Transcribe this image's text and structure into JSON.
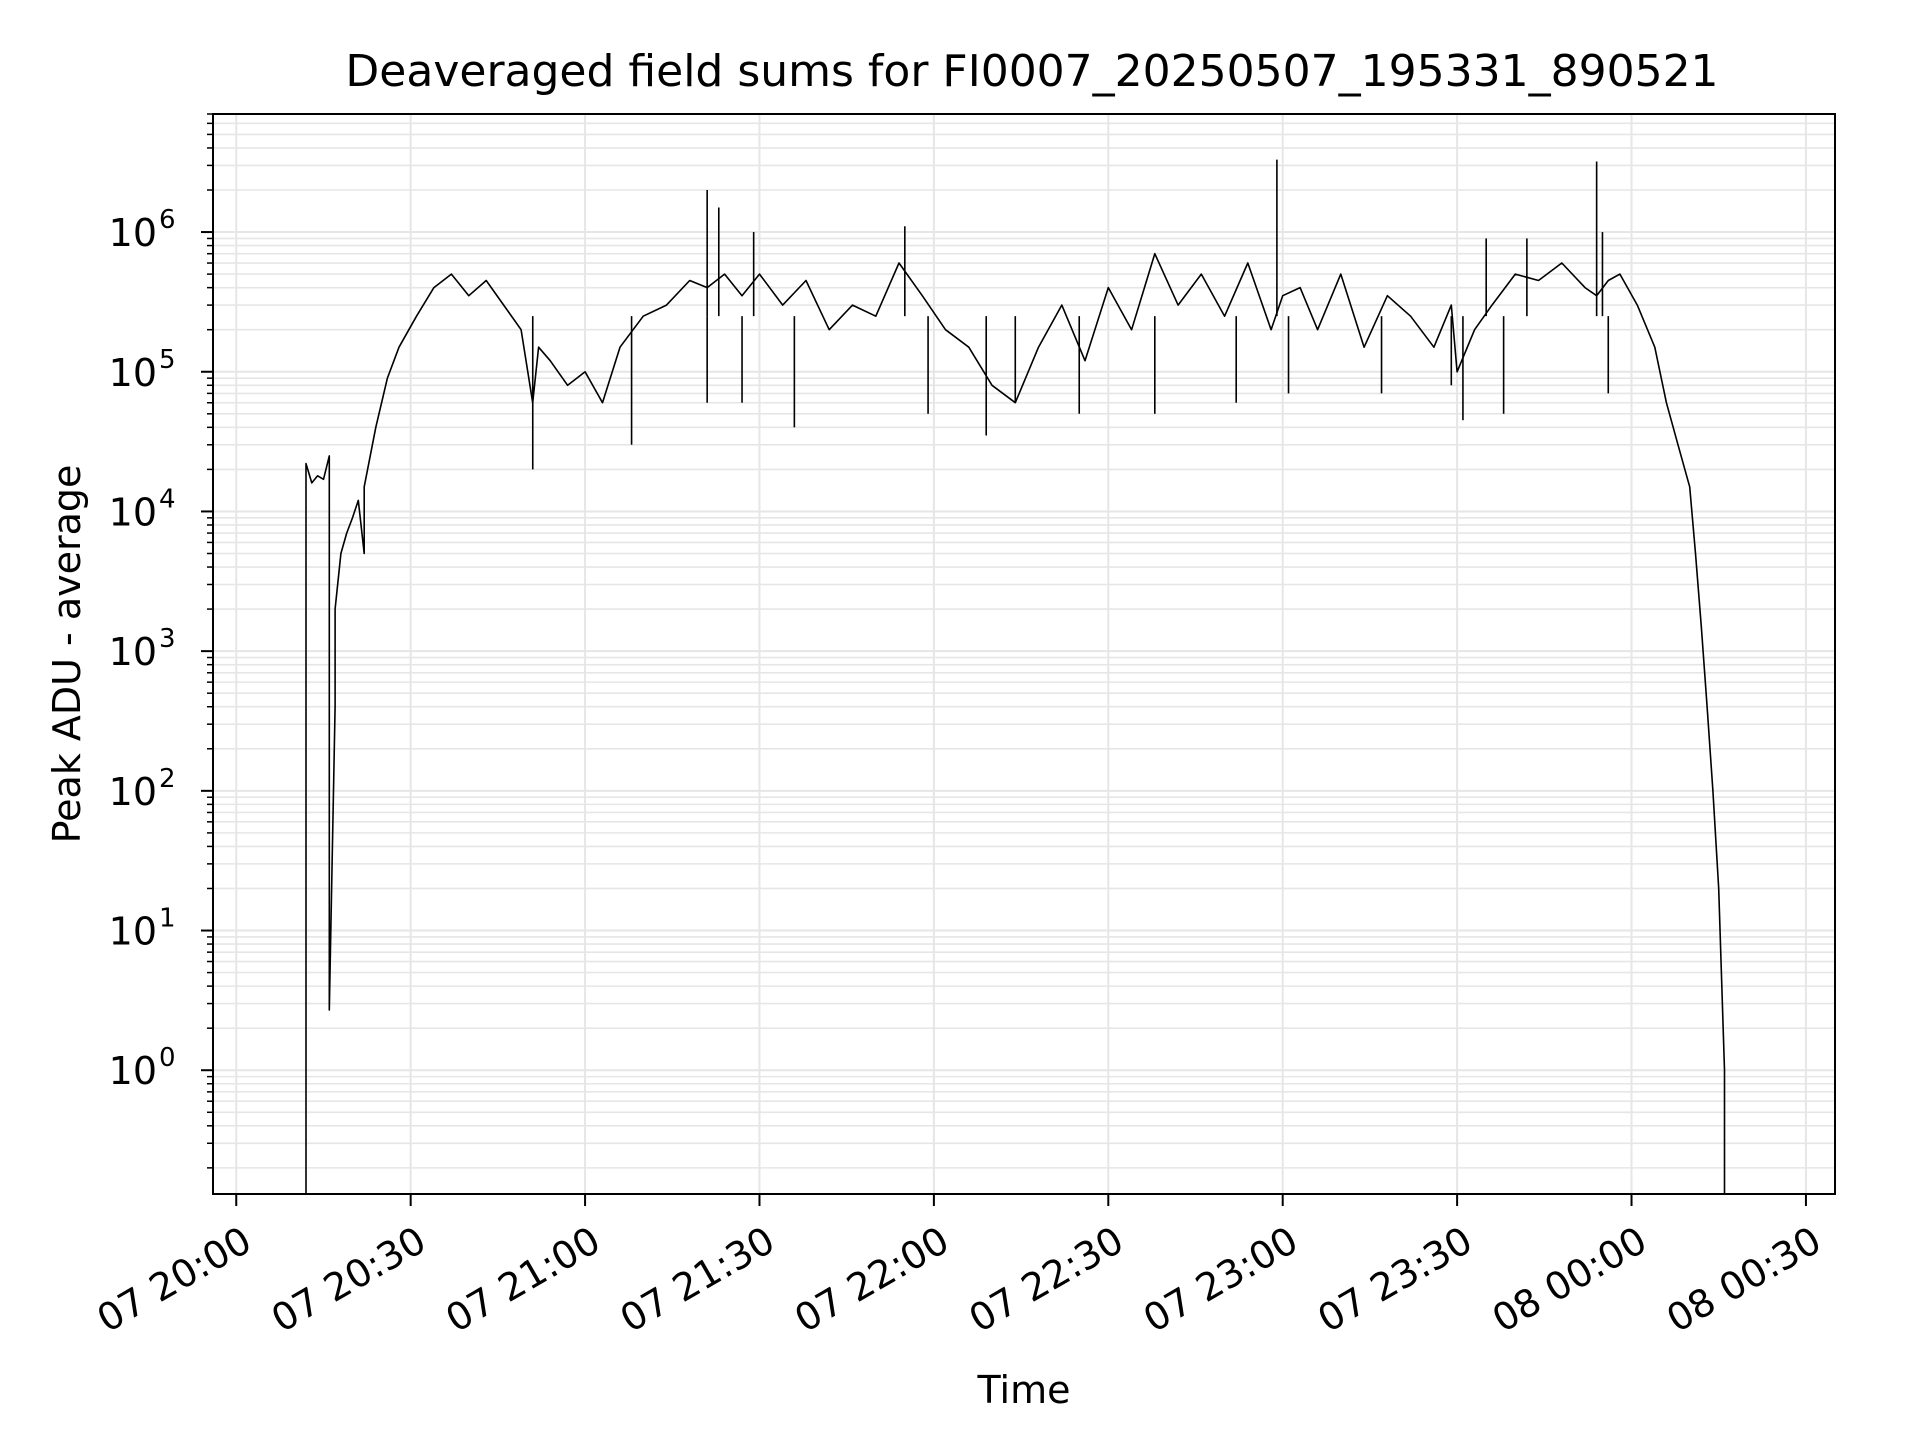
{
  "chart_data": {
    "type": "line",
    "title": "Deaveraged field sums for FI0007_20250507_195331_890521",
    "xlabel": "Time",
    "ylabel": "Peak ADU - average",
    "yscale": "log",
    "grid": true,
    "line_color": "#000000",
    "grid_color": "#e6e6e6",
    "x_ticks": [
      "07 20:00",
      "07 20:30",
      "07 21:00",
      "07 21:30",
      "07 22:00",
      "07 22:30",
      "07 23:00",
      "07 23:30",
      "08 00:00",
      "08 00:30"
    ],
    "y_ticks": [
      {
        "value": 1,
        "base": "10",
        "exp": "0"
      },
      {
        "value": 10,
        "base": "10",
        "exp": "1"
      },
      {
        "value": 100,
        "base": "10",
        "exp": "2"
      },
      {
        "value": 1000,
        "base": "10",
        "exp": "3"
      },
      {
        "value": 10000,
        "base": "10",
        "exp": "4"
      },
      {
        "value": 100000,
        "base": "10",
        "exp": "5"
      },
      {
        "value": 1000000,
        "base": "10",
        "exp": "6"
      }
    ],
    "xlim": [
      "2025-05-07 19:56",
      "2025-05-08 00:35"
    ],
    "ylim": [
      0.13,
      7000000
    ],
    "series": [
      {
        "x": [
          "2025-05-07 20:12",
          "2025-05-07 20:12",
          "2025-05-07 20:13",
          "2025-05-07 20:14",
          "2025-05-07 20:15",
          "2025-05-07 20:16",
          "2025-05-07 20:16",
          "2025-05-07 20:16",
          "2025-05-07 20:17",
          "2025-05-07 20:17",
          "2025-05-07 20:18",
          "2025-05-07 20:19",
          "2025-05-07 20:20",
          "2025-05-07 20:21",
          "2025-05-07 20:22",
          "2025-05-07 20:22",
          "2025-05-07 20:24",
          "2025-05-07 20:26",
          "2025-05-07 20:28",
          "2025-05-07 20:31",
          "2025-05-07 20:34",
          "2025-05-07 20:37",
          "2025-05-07 20:40",
          "2025-05-07 20:43",
          "2025-05-07 20:46",
          "2025-05-07 20:49",
          "2025-05-07 20:51",
          "2025-05-07 20:52",
          "2025-05-07 20:54",
          "2025-05-07 20:57",
          "2025-05-07 21:00",
          "2025-05-07 21:03",
          "2025-05-07 21:06",
          "2025-05-07 21:10",
          "2025-05-07 21:14",
          "2025-05-07 21:18",
          "2025-05-07 21:21",
          "2025-05-07 21:24",
          "2025-05-07 21:27",
          "2025-05-07 21:30",
          "2025-05-07 21:34",
          "2025-05-07 21:38",
          "2025-05-07 21:42",
          "2025-05-07 21:46",
          "2025-05-07 21:50",
          "2025-05-07 21:54",
          "2025-05-07 21:58",
          "2025-05-07 22:02",
          "2025-05-07 22:06",
          "2025-05-07 22:10",
          "2025-05-07 22:14",
          "2025-05-07 22:18",
          "2025-05-07 22:22",
          "2025-05-07 22:26",
          "2025-05-07 22:30",
          "2025-05-07 22:34",
          "2025-05-07 22:38",
          "2025-05-07 22:42",
          "2025-05-07 22:46",
          "2025-05-07 22:50",
          "2025-05-07 22:54",
          "2025-05-07 22:58",
          "2025-05-07 23:00",
          "2025-05-07 23:03",
          "2025-05-07 23:06",
          "2025-05-07 23:10",
          "2025-05-07 23:14",
          "2025-05-07 23:18",
          "2025-05-07 23:22",
          "2025-05-07 23:26",
          "2025-05-07 23:29",
          "2025-05-07 23:30",
          "2025-05-07 23:33",
          "2025-05-07 23:36",
          "2025-05-07 23:40",
          "2025-05-07 23:44",
          "2025-05-07 23:48",
          "2025-05-07 23:52",
          "2025-05-07 23:54",
          "2025-05-07 23:56",
          "2025-05-07 23:58",
          "2025-05-08 00:01",
          "2025-05-08 00:04",
          "2025-05-08 00:06",
          "2025-05-08 00:08",
          "2025-05-08 00:10",
          "2025-05-08 00:11",
          "2025-05-08 00:12",
          "2025-05-08 00:13",
          "2025-05-08 00:14",
          "2025-05-08 00:15",
          "2025-05-08 00:16",
          "2025-05-08 00:16"
        ],
        "y": [
          0.13,
          22000,
          16000,
          18000,
          17000,
          25000,
          1000,
          2.7,
          400,
          2000,
          5000,
          7000,
          9000,
          12000,
          5000,
          15000,
          40000,
          90000,
          150000,
          250000,
          400000,
          500000,
          350000,
          450000,
          300000,
          200000,
          60000,
          150000,
          120000,
          80000,
          100000,
          60000,
          150000,
          250000,
          300000,
          450000,
          400000,
          500000,
          350000,
          500000,
          300000,
          450000,
          200000,
          300000,
          250000,
          600000,
          350000,
          200000,
          150000,
          80000,
          60000,
          150000,
          300000,
          120000,
          400000,
          200000,
          700000,
          300000,
          500000,
          250000,
          600000,
          200000,
          350000,
          400000,
          200000,
          500000,
          150000,
          350000,
          250000,
          150000,
          300000,
          100000,
          200000,
          300000,
          500000,
          450000,
          600000,
          400000,
          350000,
          450000,
          500000,
          300000,
          150000,
          60000,
          30000,
          15000,
          5000,
          1500,
          400,
          100,
          20,
          1,
          0.13
        ]
      },
      {
        "x": [
          "2025-05-07 20:51",
          "2025-05-07 21:08",
          "2025-05-07 21:21",
          "2025-05-07 21:21",
          "2025-05-07 21:23",
          "2025-05-07 21:27",
          "2025-05-07 21:29",
          "2025-05-07 21:36",
          "2025-05-07 21:55",
          "2025-05-07 21:59",
          "2025-05-07 22:09",
          "2025-05-07 22:14",
          "2025-05-07 22:25",
          "2025-05-07 22:38",
          "2025-05-07 22:52",
          "2025-05-07 22:59",
          "2025-05-07 23:01",
          "2025-05-07 23:17",
          "2025-05-07 23:29",
          "2025-05-07 23:31",
          "2025-05-07 23:35",
          "2025-05-07 23:38",
          "2025-05-07 23:42",
          "2025-05-07 23:54",
          "2025-05-07 23:55",
          "2025-05-07 23:56"
        ],
        "y": [
          20000,
          30000,
          2000000,
          60000,
          1500000,
          60000,
          1000000,
          40000,
          1100000,
          50000,
          35000,
          60000,
          50000,
          50000,
          60000,
          3300000,
          70000,
          70000,
          80000,
          45000,
          900000,
          50000,
          900000,
          3200000,
          1000000,
          70000
        ]
      }
    ]
  }
}
